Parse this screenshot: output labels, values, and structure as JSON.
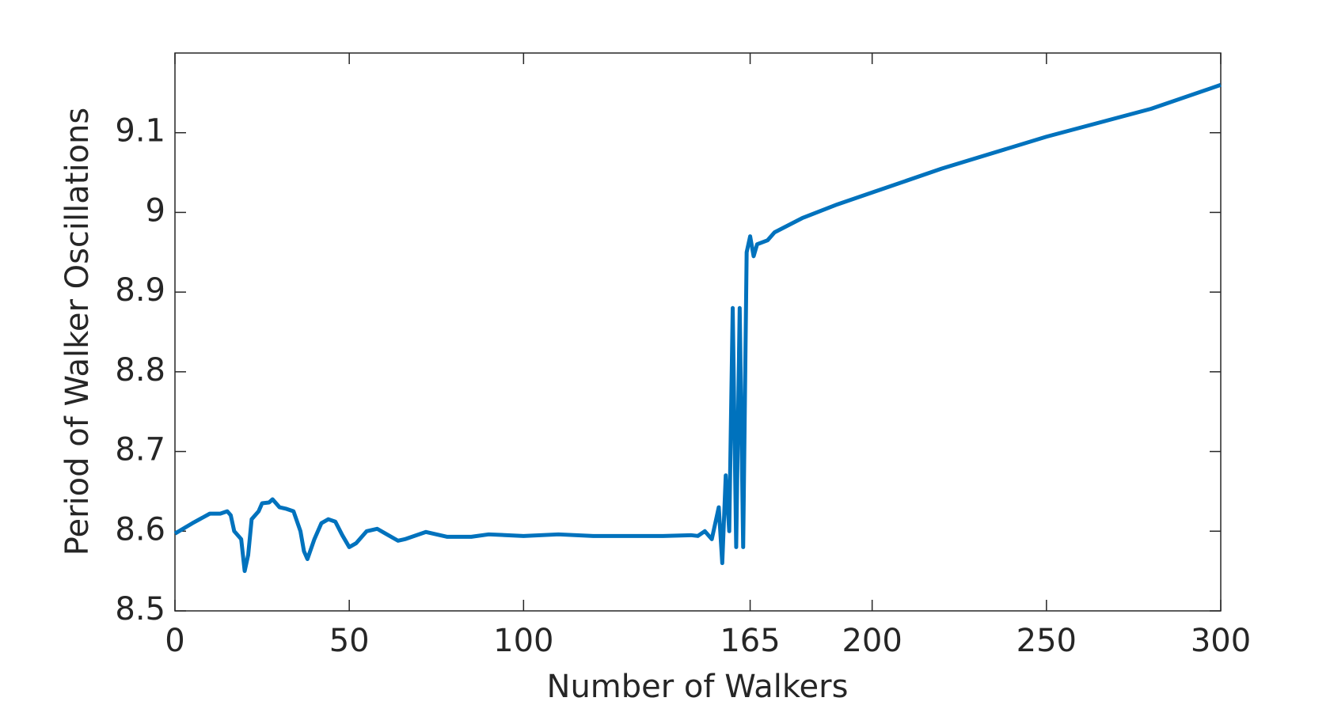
{
  "chart_data": {
    "type": "line",
    "x_label": "Number of Walkers",
    "y_label": "Period of Walker Oscillations",
    "xlim": [
      0,
      300
    ],
    "ylim": [
      8.5,
      9.2
    ],
    "xticks": [
      0,
      50,
      100,
      165,
      200,
      250,
      300
    ],
    "yticks": [
      8.5,
      8.6,
      8.7,
      8.8,
      8.9,
      9,
      9.1
    ],
    "x": [
      0,
      5,
      10,
      13,
      15,
      16,
      17,
      19,
      20,
      21,
      22,
      24,
      25,
      27,
      28,
      30,
      32,
      34,
      36,
      37,
      38,
      40,
      42,
      44,
      46,
      48,
      50,
      52,
      55,
      58,
      60,
      64,
      66,
      72,
      78,
      85,
      90,
      100,
      110,
      120,
      130,
      140,
      148,
      150,
      152,
      154,
      156,
      157,
      158,
      159,
      160,
      161,
      162,
      163,
      164,
      165,
      166,
      167,
      170,
      172,
      180,
      190,
      200,
      220,
      250,
      280,
      300
    ],
    "series": [
      {
        "color": "#0072bd",
        "values": [
          8.597,
          8.61,
          8.622,
          8.622,
          8.625,
          8.62,
          8.6,
          8.59,
          8.55,
          8.57,
          8.615,
          8.625,
          8.635,
          8.636,
          8.64,
          8.63,
          8.628,
          8.625,
          8.6,
          8.575,
          8.565,
          8.59,
          8.61,
          8.615,
          8.612,
          8.595,
          8.58,
          8.585,
          8.6,
          8.603,
          8.598,
          8.588,
          8.59,
          8.599,
          8.593,
          8.593,
          8.596,
          8.594,
          8.596,
          8.594,
          8.594,
          8.594,
          8.595,
          8.594,
          8.6,
          8.59,
          8.63,
          8.56,
          8.67,
          8.6,
          8.88,
          8.58,
          8.88,
          8.58,
          8.95,
          8.97,
          8.945,
          8.96,
          8.965,
          8.975,
          8.993,
          9.01,
          9.025,
          9.055,
          9.095,
          9.13,
          9.16
        ]
      }
    ]
  }
}
